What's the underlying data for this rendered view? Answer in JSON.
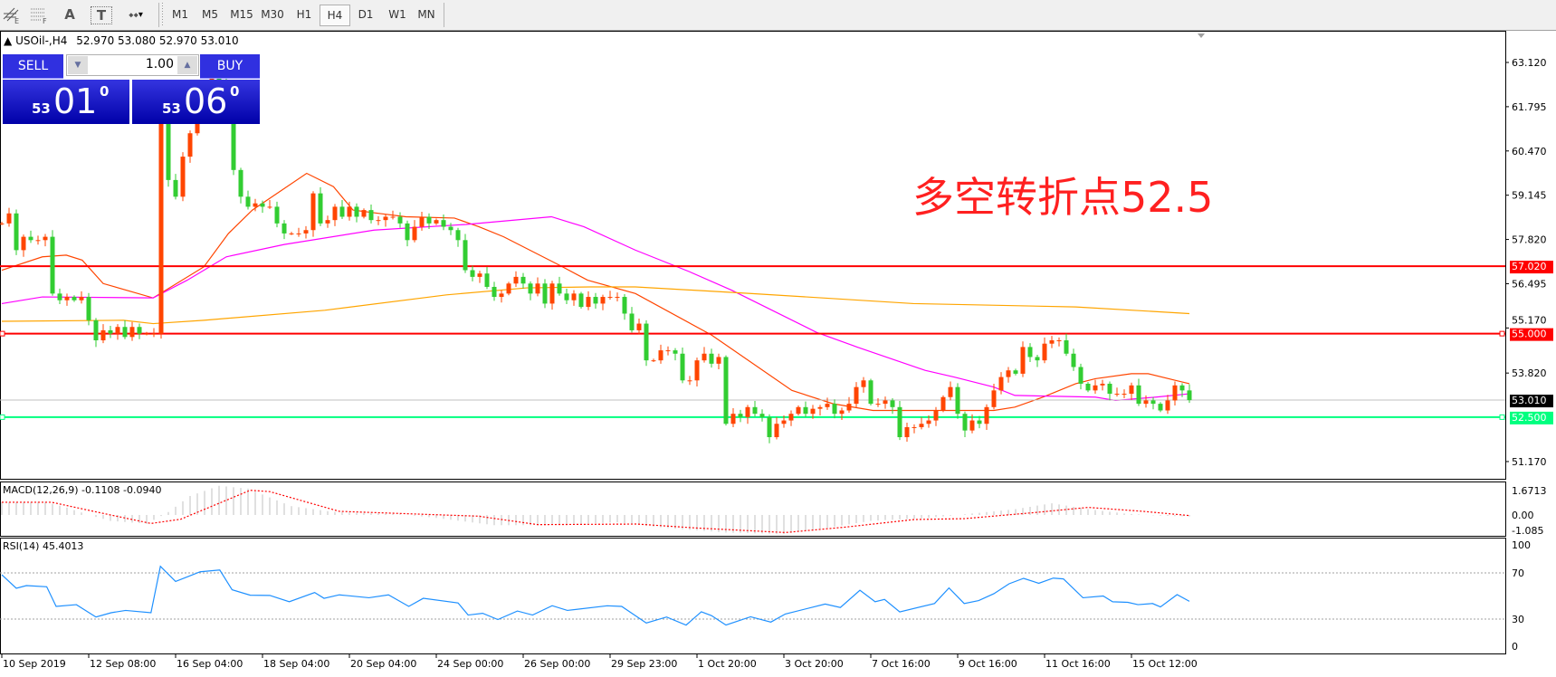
{
  "toolbar": {
    "tools": [
      {
        "name": "fibonacci-expansion-icon",
        "glyph": "⫽",
        "sub": "E"
      },
      {
        "name": "fibonacci-fan-icon",
        "glyph": "⋯",
        "sub": "F"
      },
      {
        "name": "text-icon",
        "glyph": "A",
        "sub": ""
      },
      {
        "name": "text-label-icon",
        "glyph": "T",
        "sub": ""
      },
      {
        "name": "arrows-icon",
        "glyph": "⬩",
        "sub": "▾"
      }
    ],
    "timeframes": [
      "M1",
      "M5",
      "M15",
      "M30",
      "H1",
      "H4",
      "D1",
      "W1",
      "MN"
    ],
    "active_timeframe": "H4"
  },
  "chart_header": {
    "symbol": "USOil-,H4",
    "ohlc": "52.970 53.080 52.970 53.010"
  },
  "trade_panel": {
    "sell_label": "SELL",
    "buy_label": "BUY",
    "lot": "1.00",
    "sell_price": {
      "big": "53",
      "digits": "01",
      "sup": "0"
    },
    "buy_price": {
      "big": "53",
      "digits": "06",
      "sup": "0"
    },
    "color": "#2a2ad8"
  },
  "annotation": {
    "text": "多空转折点52.5",
    "color": "#ff2020"
  },
  "chart_data": [
    {
      "type": "candlestick",
      "symbol": "USOil-",
      "timeframe": "H4",
      "ylim": [
        50.6,
        63.7
      ],
      "price_ticks": [
        "63.120",
        "61.795",
        "60.470",
        "59.145",
        "57.820",
        "56.495",
        "55.170",
        "53.820",
        "51.170"
      ],
      "x_labels": [
        {
          "index": 0,
          "text": "10 Sep 2019"
        },
        {
          "index": 12,
          "text": "12 Sep 08:00"
        },
        {
          "index": 24,
          "text": "16 Sep 04:00"
        },
        {
          "index": 36,
          "text": "18 Sep 04:00"
        },
        {
          "index": 48,
          "text": "20 Sep 04:00"
        },
        {
          "index": 60,
          "text": "24 Sep 00:00"
        },
        {
          "index": 72,
          "text": "26 Sep 00:00"
        },
        {
          "index": 84,
          "text": "29 Sep 23:00"
        },
        {
          "index": 96,
          "text": "1 Oct 20:00"
        },
        {
          "index": 108,
          "text": "3 Oct 20:00"
        },
        {
          "index": 120,
          "text": "7 Oct 16:00"
        },
        {
          "index": 132,
          "text": "9 Oct 16:00"
        },
        {
          "index": 144,
          "text": "11 Oct 16:00"
        },
        {
          "index": 156,
          "text": "15 Oct 12:00"
        }
      ],
      "up_color": "#ff4500",
      "down_color": "#32cd32",
      "closes": [
        58.3,
        58.6,
        57.5,
        57.9,
        57.8,
        57.8,
        57.9,
        56.2,
        56.0,
        56.1,
        56.0,
        56.1,
        55.4,
        54.8,
        55.1,
        55.0,
        55.2,
        54.9,
        55.2,
        55.0,
        55.0,
        55.0,
        61.4,
        59.6,
        59.1,
        60.3,
        61.0,
        61.5,
        62.3,
        62.8,
        62.5,
        61.8,
        59.9,
        59.1,
        58.8,
        58.9,
        58.8,
        58.8,
        58.3,
        58.0,
        58.0,
        58.0,
        58.1,
        59.2,
        58.3,
        58.4,
        58.8,
        58.5,
        58.8,
        58.5,
        58.7,
        58.4,
        58.4,
        58.5,
        58.5,
        58.3,
        57.8,
        58.2,
        58.5,
        58.3,
        58.4,
        58.2,
        58.1,
        57.8,
        56.9,
        56.7,
        56.8,
        56.4,
        56.1,
        56.2,
        56.5,
        56.7,
        56.5,
        56.2,
        56.5,
        55.9,
        56.5,
        56.2,
        56.0,
        56.2,
        55.8,
        56.1,
        55.9,
        56.1,
        56.1,
        56.1,
        55.6,
        55.1,
        55.3,
        54.2,
        54.2,
        54.5,
        54.5,
        54.4,
        53.6,
        53.6,
        54.2,
        54.4,
        54.1,
        54.3,
        52.3,
        52.6,
        52.5,
        52.8,
        52.6,
        52.5,
        51.9,
        52.3,
        52.4,
        52.6,
        52.8,
        52.6,
        52.75,
        52.8,
        52.9,
        52.6,
        52.7,
        52.9,
        53.4,
        53.6,
        52.9,
        52.9,
        53.0,
        52.8,
        51.9,
        52.2,
        52.2,
        52.3,
        52.4,
        52.7,
        53.1,
        53.4,
        52.6,
        52.1,
        52.4,
        52.3,
        52.8,
        53.3,
        53.7,
        53.9,
        53.8,
        54.6,
        54.3,
        54.2,
        54.7,
        54.8,
        54.8,
        54.4,
        54.0,
        53.5,
        53.3,
        53.45,
        53.5,
        53.2,
        53.2,
        53.2,
        53.45,
        52.9,
        53.0,
        52.9,
        52.7,
        53.0,
        53.45,
        53.3,
        53.01
      ],
      "moving_averages": [
        {
          "color": "#ff4500",
          "points": [
            [
              0,
              56.9
            ],
            [
              5.6,
              57.3
            ],
            [
              8.9,
              57.35
            ],
            [
              11.1,
              57.2
            ],
            [
              14,
              56.5
            ],
            [
              20.9,
              56.07
            ],
            [
              27.9,
              57.0
            ],
            [
              31.3,
              58.0
            ],
            [
              34.6,
              58.7
            ],
            [
              42.1,
              59.8
            ],
            [
              45.8,
              59.4
            ],
            [
              48.5,
              58.7
            ],
            [
              52.1,
              58.6
            ],
            [
              55.8,
              58.5
            ],
            [
              62.5,
              58.46
            ],
            [
              65.9,
              58.2
            ],
            [
              69.3,
              57.9
            ],
            [
              77,
              57.05
            ],
            [
              80.9,
              56.6
            ],
            [
              87.5,
              56.2
            ],
            [
              98,
              54.96
            ],
            [
              109.1,
              53.3
            ],
            [
              114.8,
              52.9
            ],
            [
              120.3,
              52.7
            ],
            [
              137,
              52.7
            ],
            [
              139.9,
              52.8
            ],
            [
              143.8,
              53.1
            ],
            [
              148.3,
              53.5
            ],
            [
              151,
              53.65
            ],
            [
              156,
              53.8
            ],
            [
              158.3,
              53.8
            ],
            [
              162.1,
              53.6
            ],
            [
              164,
              53.5
            ]
          ]
        },
        {
          "color": "#ff00ff",
          "points": [
            [
              0,
              55.9
            ],
            [
              5.6,
              56.1
            ],
            [
              20.9,
              56.07
            ],
            [
              25.6,
              56.6
            ],
            [
              31,
              57.3
            ],
            [
              39,
              57.67
            ],
            [
              51.4,
              58.1
            ],
            [
              64.1,
              58.27
            ],
            [
              75.9,
              58.5
            ],
            [
              80.4,
              58.2
            ],
            [
              87.5,
              57.5
            ],
            [
              94.9,
              56.86
            ],
            [
              100.8,
              56.3
            ],
            [
              112.5,
              55.04
            ],
            [
              118.1,
              54.6
            ],
            [
              127.5,
              53.9
            ],
            [
              131.5,
              53.7
            ],
            [
              137,
              53.4
            ],
            [
              139.9,
              53.15
            ],
            [
              151,
              53.1
            ],
            [
              153.8,
              53.0
            ],
            [
              159.4,
              53.1
            ],
            [
              164,
              53.2
            ]
          ]
        },
        {
          "color": "#ffa500",
          "points": [
            [
              0,
              55.37
            ],
            [
              16.8,
              55.4
            ],
            [
              20.9,
              55.3
            ],
            [
              27.9,
              55.4
            ],
            [
              44.6,
              55.7
            ],
            [
              61.4,
              56.16
            ],
            [
              72.5,
              56.37
            ],
            [
              87.5,
              56.4
            ],
            [
              81.3,
              56.4
            ],
            [
              103.6,
              56.2
            ],
            [
              125.9,
              55.9
            ],
            [
              148.3,
              55.8
            ],
            [
              164,
              55.6
            ]
          ]
        }
      ],
      "horizontal_lines": [
        {
          "price": 57.02,
          "label": "57.020",
          "color": "#ff0000",
          "markers": false
        },
        {
          "price": 55.0,
          "label": "55.000",
          "color": "#ff0000",
          "markers": true
        },
        {
          "price": 53.01,
          "label": "53.010",
          "color": "#c0c0c0",
          "label_bg": "#000000",
          "markers": false
        },
        {
          "price": 52.5,
          "label": "52.500",
          "color": "#00ff7f",
          "markers": true
        }
      ]
    },
    {
      "type": "bar+line",
      "title": "MACD(12,26,9) -0.1108 -0.0940",
      "ticks": [
        "1.6713",
        "0.00",
        "-1.085"
      ],
      "tick_values": [
        1.6713,
        0,
        -1.085
      ],
      "histogram_color": "#c0c0c0",
      "signal_color": "#ff0000",
      "histogram": [
        [
          0,
          0.87
        ],
        [
          6,
          0.9
        ],
        [
          9,
          0.5
        ],
        [
          12,
          0
        ],
        [
          15,
          -0.4
        ],
        [
          20,
          -0.6
        ],
        [
          23,
          0.2
        ],
        [
          26,
          1.3
        ],
        [
          30,
          2.0
        ],
        [
          34,
          1.8
        ],
        [
          40,
          0.6
        ],
        [
          46,
          0.2
        ],
        [
          55,
          0.05
        ],
        [
          60,
          -0.2
        ],
        [
          68,
          -0.7
        ],
        [
          75,
          -0.7
        ],
        [
          85,
          -0.5
        ],
        [
          92,
          -0.9
        ],
        [
          100,
          -1.2
        ],
        [
          108,
          -1.3
        ],
        [
          115,
          -0.8
        ],
        [
          120,
          -0.4
        ],
        [
          128,
          -0.2
        ],
        [
          134,
          0.1
        ],
        [
          140,
          0.4
        ],
        [
          145,
          0.8
        ],
        [
          150,
          0.4
        ],
        [
          155,
          0.1
        ],
        [
          160,
          -0.05
        ],
        [
          164,
          -0.1
        ]
      ],
      "signal": [
        [
          0,
          0.87
        ],
        [
          6.9,
          0.87
        ],
        [
          13.7,
          0.14
        ],
        [
          20.6,
          -0.58
        ],
        [
          24.7,
          -0.29
        ],
        [
          34.3,
          1.69
        ],
        [
          37,
          1.6
        ],
        [
          46.6,
          0.25
        ],
        [
          57.5,
          0.06
        ],
        [
          65.8,
          -0.08
        ],
        [
          74,
          -0.66
        ],
        [
          87.7,
          -0.62
        ],
        [
          95.9,
          -0.89
        ],
        [
          108.2,
          -1.2
        ],
        [
          116.5,
          -0.83
        ],
        [
          126,
          -0.31
        ],
        [
          132.9,
          -0.25
        ],
        [
          142.5,
          0.16
        ],
        [
          150,
          0.52
        ],
        [
          157.6,
          0.25
        ],
        [
          164,
          -0.04
        ]
      ]
    },
    {
      "type": "line",
      "title": "RSI(14) 45.4013",
      "ticks": [
        "100",
        "70",
        "30",
        "0"
      ],
      "tick_values": [
        100,
        70,
        30,
        0
      ],
      "levels": [
        70,
        30
      ],
      "color": "#1e90ff",
      "values": [
        [
          0,
          68.4
        ],
        [
          2,
          56.7
        ],
        [
          3.4,
          59
        ],
        [
          6.2,
          58
        ],
        [
          7.5,
          41
        ],
        [
          10.3,
          42.5
        ],
        [
          13,
          31.8
        ],
        [
          15.1,
          35.5
        ],
        [
          17.1,
          37.5
        ],
        [
          20.6,
          35.5
        ],
        [
          21.9,
          75.7
        ],
        [
          24,
          62.6
        ],
        [
          27.4,
          71
        ],
        [
          30.1,
          72.5
        ],
        [
          31.8,
          55.4
        ],
        [
          34.3,
          50.7
        ],
        [
          37,
          50.5
        ],
        [
          39.7,
          45
        ],
        [
          43.2,
          53
        ],
        [
          44.5,
          48
        ],
        [
          46.6,
          51
        ],
        [
          50.7,
          48.5
        ],
        [
          53.4,
          51
        ],
        [
          56.2,
          41
        ],
        [
          58.2,
          48
        ],
        [
          63,
          44
        ],
        [
          64.4,
          33.5
        ],
        [
          66.4,
          35
        ],
        [
          68.5,
          29.6
        ],
        [
          71.2,
          37
        ],
        [
          73.3,
          33.5
        ],
        [
          76,
          41.6
        ],
        [
          78.1,
          37.5
        ],
        [
          83.6,
          41.5
        ],
        [
          85.6,
          41
        ],
        [
          89,
          26.6
        ],
        [
          91.8,
          31.8
        ],
        [
          94.5,
          24.8
        ],
        [
          96.6,
          36.3
        ],
        [
          98,
          33
        ],
        [
          100,
          24.8
        ],
        [
          103.4,
          32
        ],
        [
          106.2,
          27.4
        ],
        [
          108.2,
          34.4
        ],
        [
          113.7,
          43
        ],
        [
          115.8,
          40
        ],
        [
          118.5,
          55
        ],
        [
          120.6,
          45
        ],
        [
          121.9,
          47
        ],
        [
          124,
          36.2
        ],
        [
          128.8,
          43.5
        ],
        [
          130.8,
          57
        ],
        [
          132.9,
          43.5
        ],
        [
          134.9,
          46
        ],
        [
          137,
          52
        ],
        [
          139.1,
          60.6
        ],
        [
          141.1,
          65.3
        ],
        [
          143.2,
          61
        ],
        [
          145.2,
          65.5
        ],
        [
          146.6,
          64.8
        ],
        [
          149.3,
          48.5
        ],
        [
          152.1,
          50
        ],
        [
          153.4,
          45
        ],
        [
          155.5,
          44.5
        ],
        [
          156.9,
          42.5
        ],
        [
          158.9,
          43.5
        ],
        [
          160,
          40.5
        ],
        [
          162.3,
          51.2
        ],
        [
          164,
          45.4
        ]
      ]
    }
  ]
}
